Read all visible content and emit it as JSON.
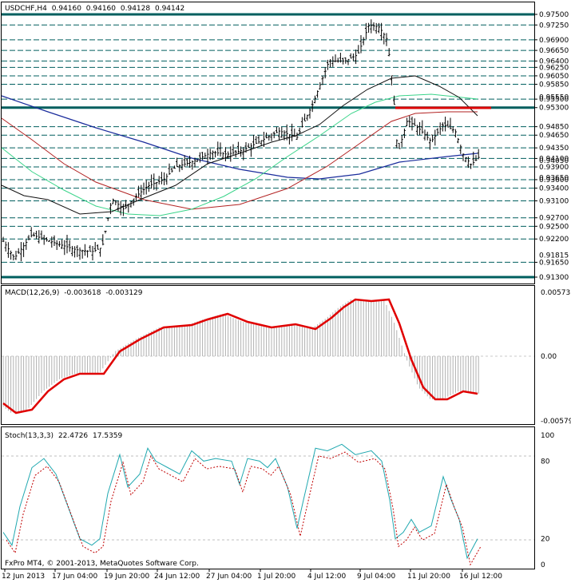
{
  "main_header": {
    "symbol": "USDCHF,H4",
    "o": "0.94160",
    "h": "0.94160",
    "l": "0.94128",
    "c": "0.94142"
  },
  "macd_header": {
    "label": "MACD(12,26,9)",
    "v1": "-0.003618",
    "v2": "-0.003129"
  },
  "stoch_header": {
    "label": "Stoch(13,3,3)",
    "v1": "22.4726",
    "v2": "17.5359"
  },
  "footer": "FxPro MT4, © 2001-2013, MetaQuotes Software Corp.",
  "price_levels": [
    {
      "label": "0.97500",
      "v": 0.975,
      "style": "solid"
    },
    {
      "label": "0.97250",
      "v": 0.9725,
      "style": "dash"
    },
    {
      "label": "0.96900",
      "v": 0.969,
      "style": "dash"
    },
    {
      "label": "0.96650",
      "v": 0.9665,
      "style": "dash"
    },
    {
      "label": "0.96400",
      "v": 0.964,
      "style": "dash"
    },
    {
      "label": "0.96250",
      "v": 0.9625,
      "style": "dash"
    },
    {
      "label": "0.96050",
      "v": 0.9605,
      "style": "dash"
    },
    {
      "label": "0.95850",
      "v": 0.9585,
      "style": "dash"
    },
    {
      "label": "0.95500",
      "v": 0.955,
      "style": "dash"
    },
    {
      "label": "0.95300",
      "v": 0.953,
      "style": "solid"
    },
    {
      "label": "0.94850",
      "v": 0.9485,
      "style": "dash"
    },
    {
      "label": "0.94650",
      "v": 0.9465,
      "style": "dash"
    },
    {
      "label": "0.94350",
      "v": 0.9435,
      "style": "dash"
    },
    {
      "label": "0.94100",
      "v": 0.941,
      "style": "dash"
    },
    {
      "label": "0.93900",
      "v": 0.939,
      "style": "dash"
    },
    {
      "label": "0.93600",
      "v": 0.936,
      "style": "dash"
    },
    {
      "label": "0.93400",
      "v": 0.934,
      "style": "dash"
    },
    {
      "label": "0.93100",
      "v": 0.931,
      "style": "dash"
    },
    {
      "label": "0.92700",
      "v": 0.927,
      "style": "dash"
    },
    {
      "label": "0.92500",
      "v": 0.925,
      "style": "dash"
    },
    {
      "label": "0.92200",
      "v": 0.922,
      "style": "dash"
    },
    {
      "label": "0.91650",
      "v": 0.9165,
      "style": "dash"
    },
    {
      "label": "0.91300",
      "v": 0.913,
      "style": "solid"
    }
  ],
  "price_axis_extra": [
    {
      "label": "0.95550",
      "v": 0.9555
    },
    {
      "label": "0.94050",
      "v": 0.9405
    },
    {
      "label": "0.93650",
      "v": 0.9365
    },
    {
      "label": "0.91815",
      "v": 0.91815
    }
  ],
  "macd_axis": [
    "0.005737",
    "0.00",
    "-0.005793"
  ],
  "stoch_axis": [
    "100",
    "80",
    "20",
    "0"
  ],
  "x_axis": [
    "12 Jun 2013",
    "17 Jun 04:00",
    "19 Jun 20:00",
    "24 Jun 12:00",
    "27 Jun 04:00",
    "1 Jul 20:00",
    "4 Jul 12:00",
    "9 Jul 04:00",
    "11 Jul 20:00",
    "16 Jul 12:00"
  ],
  "colors": {
    "level_line": "#005f5f",
    "ma_slow": "#1a2c9c",
    "ma_mid": "#b22222",
    "ma_fast": "#3ad48a",
    "ma_black": "#111111",
    "resistance": "#dd0000",
    "macd_signal": "#e00000",
    "macd_hist": "#b0b0b0",
    "stoch_main": "#20a8b0",
    "stoch_signal": "#c00000"
  }
}
